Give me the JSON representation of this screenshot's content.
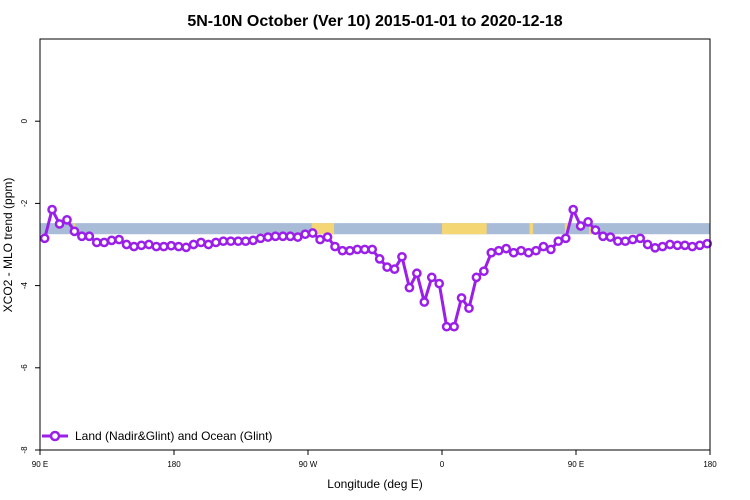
{
  "chart_data": {
    "type": "line",
    "title": "5N-10N October (Ver 10)   2015-01-01 to 2020-12-18",
    "xlabel": "Longitude (deg E)",
    "ylabel": "XCO2 - MLO trend (ppm)",
    "x_ticks": [
      "90 E",
      "180",
      "90 W",
      "0",
      "90 E",
      "180"
    ],
    "y_ticks": [
      "-8",
      "-6",
      "-4",
      "-2",
      "0"
    ],
    "x_range_deg": [
      90,
      450
    ],
    "ylim": [
      -8,
      2
    ],
    "grid": false,
    "legend_position": "bottom-left",
    "series": [
      {
        "name": "Land (Nadir&Glint) and Ocean (Glint)",
        "color": "#9b1fe8",
        "marker": "open-circle",
        "x": [
          92.5,
          96.5,
          100.5,
          104.5,
          108.5,
          112.5,
          116.5,
          120.5,
          124.5,
          128.5,
          132.5,
          136.5,
          140.5,
          144.5,
          148.5,
          152.5,
          156.5,
          160.5,
          164.5,
          168.5,
          172.5,
          176.5,
          180.5,
          184.5,
          188.5,
          192.5,
          196.5,
          200.5,
          204.5,
          208.5,
          212.5,
          216.5,
          220.5,
          224.5,
          228.5,
          232.5,
          236.5,
          240.5,
          244.5,
          248.5,
          252.5,
          256.5,
          260.5,
          264.5,
          268.5,
          272.5,
          276.5,
          280.5,
          284.5,
          288.5,
          292.5,
          296.5,
          300.5,
          304.5,
          308.5,
          312.5,
          316.5,
          320.5,
          324.5,
          328.5,
          332.5,
          336.5,
          340.5,
          344.5,
          348.5,
          352.5,
          356.5,
          360.5,
          364.5,
          368.5,
          372.5,
          376.5,
          380.5,
          384.5,
          388.5,
          392.5,
          396.5,
          400.5,
          404.5,
          408.5,
          412.5,
          416.5,
          420.5,
          424.5,
          428.5,
          432.5,
          436.5,
          440.5,
          444.5,
          448.5
        ],
        "y": [
          -2.85,
          -2.15,
          -2.5,
          -2.4,
          -2.68,
          -2.8,
          -2.8,
          -2.95,
          -2.95,
          -2.9,
          -2.88,
          -3.0,
          -3.05,
          -3.02,
          -3.0,
          -3.05,
          -3.05,
          -3.03,
          -3.05,
          -3.07,
          -3.0,
          -2.95,
          -3.0,
          -2.95,
          -2.92,
          -2.92,
          -2.92,
          -2.92,
          -2.9,
          -2.85,
          -2.82,
          -2.8,
          -2.8,
          -2.8,
          -2.82,
          -2.75,
          -2.72,
          -2.88,
          -2.82,
          -3.05,
          -3.15,
          -3.15,
          -3.12,
          -3.12,
          -3.12,
          -3.35,
          -3.55,
          -3.6,
          -3.3,
          -4.05,
          -3.7,
          -4.4,
          -3.8,
          -3.95,
          -5.0,
          -5.0,
          -4.3,
          -4.55,
          -3.8,
          -3.65,
          -3.2,
          -3.15,
          -3.1,
          -3.2,
          -3.15,
          -3.2,
          -3.15,
          -3.05,
          -3.12,
          -2.92,
          -2.85,
          -2.15,
          -2.55,
          -2.45,
          -2.65,
          -2.8,
          -2.82,
          -2.92,
          -2.92,
          -2.88,
          -2.85,
          -3.0,
          -3.08,
          -3.05,
          -3.0,
          -3.02,
          -3.02,
          -3.05,
          -3.02,
          -2.98
        ]
      }
    ],
    "land_mask": {
      "y_band": [
        -2.75,
        -2.48
      ],
      "ocean_color": "#a8bcd8",
      "land_color": "#f5d675",
      "land_segments": [
        [
          108,
          109
        ],
        [
          236,
          248
        ],
        [
          306,
          330
        ],
        [
          353,
          355
        ],
        [
          372,
          374
        ],
        [
          385,
          386
        ]
      ]
    }
  }
}
